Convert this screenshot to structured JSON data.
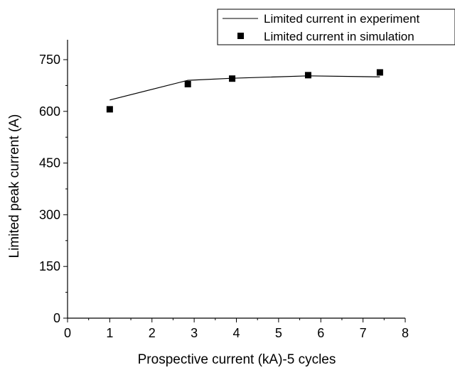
{
  "chart_data": {
    "type": "line",
    "xlabel": "Prospective current (kA)-5 cycles",
    "ylabel": "Limited peak current (A)",
    "xlim": [
      0,
      8
    ],
    "ylim": [
      0,
      750
    ],
    "x_ticks": [
      0,
      1,
      2,
      3,
      4,
      5,
      6,
      7,
      8
    ],
    "y_ticks": [
      0,
      150,
      300,
      450,
      600,
      750
    ],
    "grid": false,
    "legend_position": "top-right",
    "series": [
      {
        "name": "Limited current in experiment",
        "mark": "line",
        "color": "#000000",
        "x": [
          1.0,
          2.85,
          3.9,
          5.7,
          7.4
        ],
        "y": [
          633,
          690,
          696,
          703,
          700
        ]
      },
      {
        "name": "Limited current in simulation",
        "mark": "square",
        "color": "#000000",
        "x": [
          1.0,
          2.85,
          3.9,
          5.7,
          7.4
        ],
        "y": [
          606,
          679,
          695,
          705,
          713
        ]
      }
    ]
  }
}
